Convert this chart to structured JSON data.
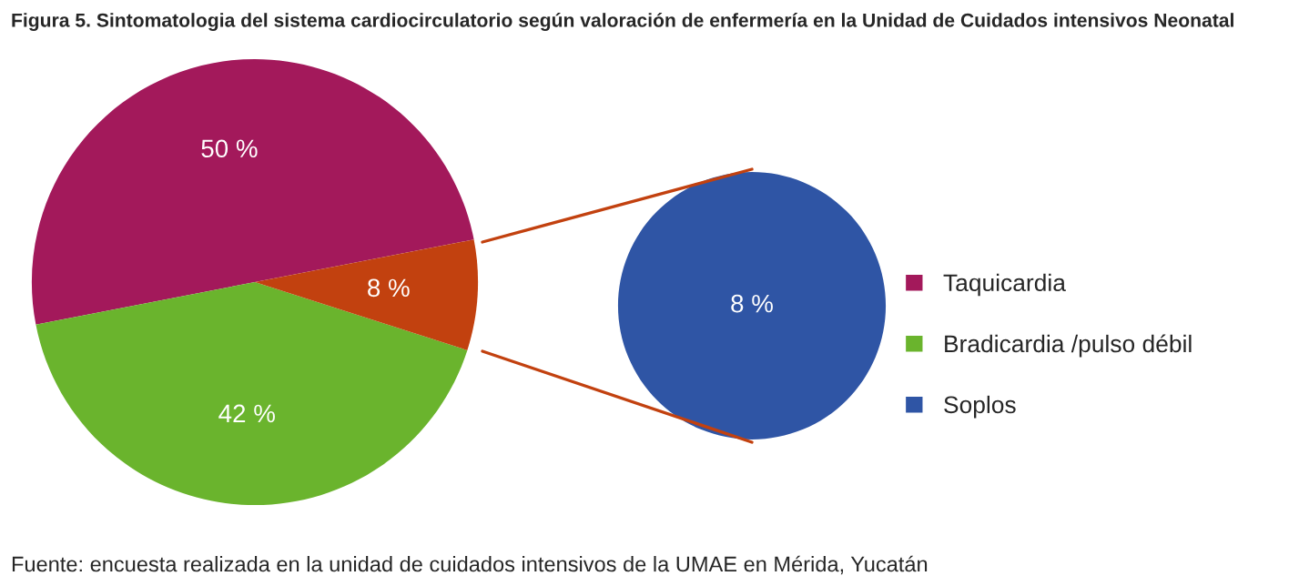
{
  "chart_data": [
    {
      "type": "pie",
      "title": "Figura 5. Sintomatologia del sistema cardiocirculatorio según valoración de enfermería en la Unidad de Cuidados intensivos Neonatal",
      "categories": [
        "Taquicardia",
        "Bradicardia /pulso débil",
        null
      ],
      "values": [
        50,
        42,
        8
      ],
      "colors": [
        "#a3195b",
        "#6ab42d",
        "#c2410f"
      ],
      "value_labels": [
        "50 %",
        "42 %",
        "8 %"
      ],
      "legend": "right",
      "annotations": [
        "Fuente: encuesta realizada en la unidad de cuidados intensivos de la UMAE en Mérida, Yucatán"
      ]
    },
    {
      "type": "pie",
      "categories": [
        "Soplos"
      ],
      "values": [
        8
      ],
      "colors": [
        "#2f55a5"
      ],
      "value_labels": [
        "8 %"
      ],
      "legend": "right"
    }
  ]
}
